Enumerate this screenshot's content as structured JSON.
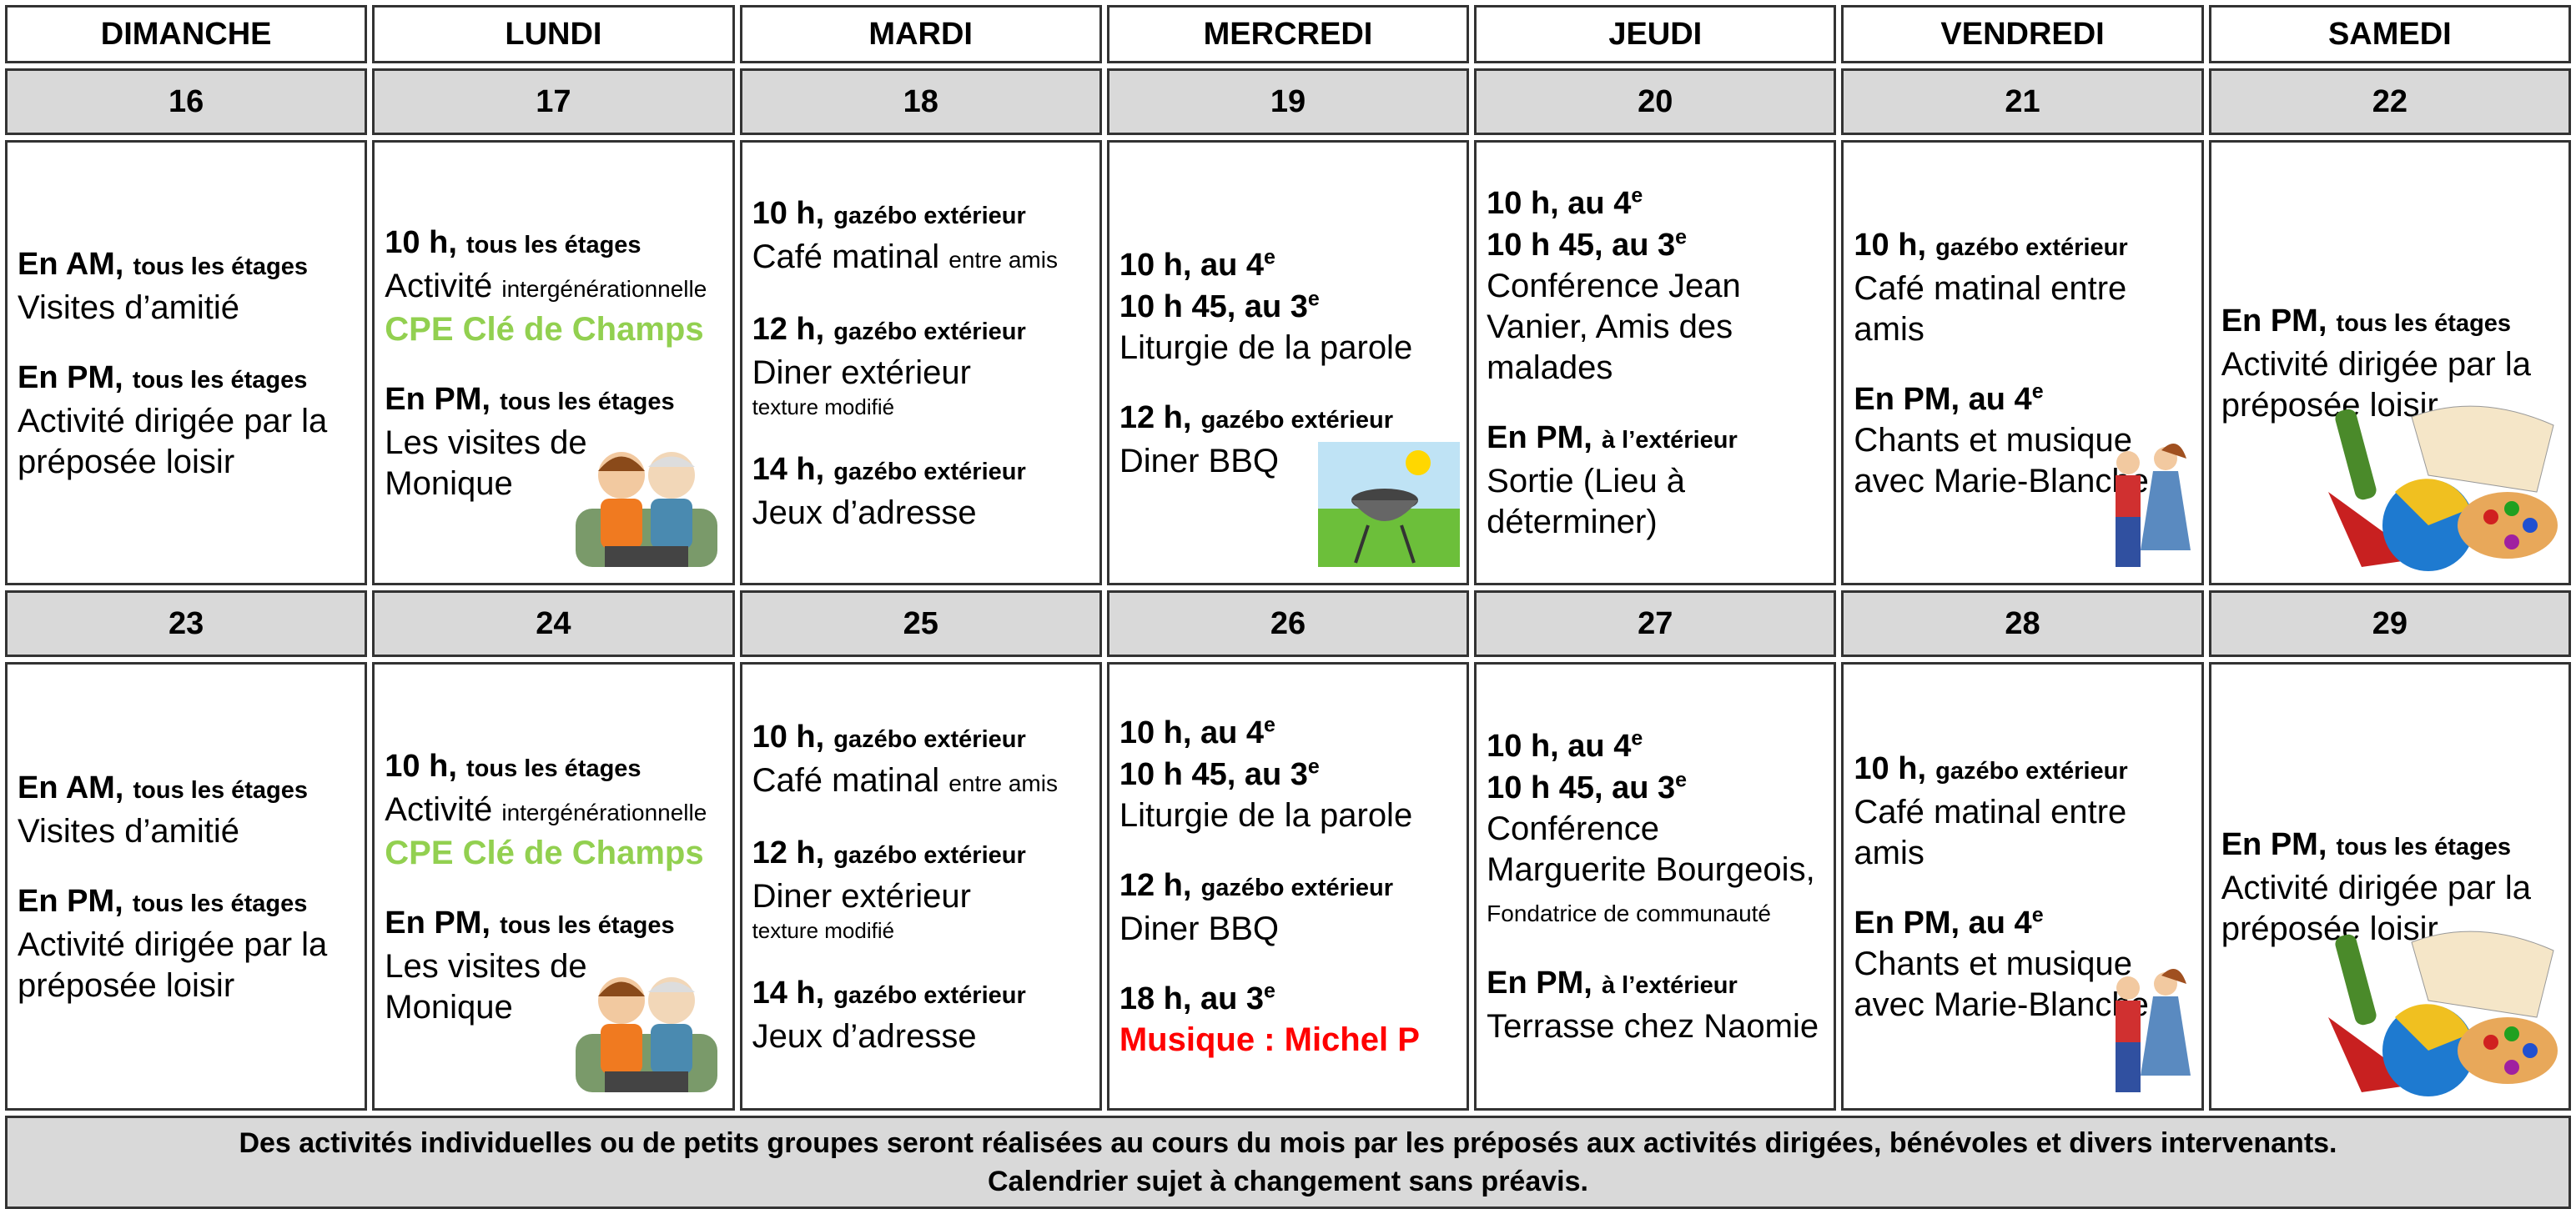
{
  "calendar": {
    "days": [
      "DIMANCHE",
      "LUNDI",
      "MARDI",
      "MERCREDI",
      "JEUDI",
      "VENDREDI",
      "SAMEDI"
    ],
    "weeks": [
      {
        "dates": [
          "16",
          "17",
          "18",
          "19",
          "20",
          "21",
          "22"
        ],
        "cells": [
          [
            {
              "times": [
                {
                  "text": "En AM,"
                }
              ],
              "place": "tous les étages",
              "activity": "Visites d’amitié"
            },
            {
              "times": [
                {
                  "text": "En PM,"
                }
              ],
              "place": "tous les étages",
              "activity": "Activité dirigée par la préposée loisir"
            }
          ],
          [
            {
              "times": [
                {
                  "text": "10 h,"
                }
              ],
              "place": "tous les étages",
              "activity": "Activité",
              "small": "intergénérationnelle",
              "highlight": {
                "text": "CPE Clé de Champs",
                "color": "#92d050"
              }
            },
            {
              "times": [
                {
                  "text": "En PM,"
                }
              ],
              "place": "tous les étages",
              "activity": "Les visites de Monique"
            }
          ],
          [
            {
              "times": [
                {
                  "text": "10 h,"
                }
              ],
              "place": "gazébo extérieur",
              "activity": "Café matinal",
              "small": "entre amis"
            },
            {
              "times": [
                {
                  "text": "12 h,"
                }
              ],
              "place": "gazébo extérieur",
              "activity": "Diner extérieur",
              "note": "texture modifié"
            },
            {
              "times": [
                {
                  "text": "14 h,"
                }
              ],
              "place": "gazébo extérieur",
              "activity": "Jeux d’adresse"
            }
          ],
          [
            {
              "times": [
                {
                  "text": "10 h, au 4",
                  "sup": "e"
                },
                {
                  "text": "10 h 45, au 3",
                  "sup": "e"
                }
              ],
              "activity": "Liturgie de la parole"
            },
            {
              "times": [
                {
                  "text": "12 h,"
                }
              ],
              "place": "gazébo extérieur",
              "activity": "Diner BBQ"
            }
          ],
          [
            {
              "times": [
                {
                  "text": "10 h, au 4",
                  "sup": "e"
                },
                {
                  "text": "10 h 45, au 3",
                  "sup": "e"
                }
              ],
              "activity": "Conférence Jean Vanier, Amis des malades"
            },
            {
              "times": [
                {
                  "text": "En PM,"
                }
              ],
              "place": "à l’extérieur",
              "activity": "Sortie (Lieu à déterminer)"
            }
          ],
          [
            {
              "times": [
                {
                  "text": "10 h,"
                }
              ],
              "place": "gazébo extérieur",
              "activity": "Café matinal entre amis"
            },
            {
              "times": [
                {
                  "text": "En PM, au 4",
                  "sup": "e"
                }
              ],
              "activity": "Chants et musique avec Marie-Blanche"
            }
          ],
          [
            {
              "times": [
                {
                  "text": "En PM,"
                }
              ],
              "place": "tous les étages",
              "activity": "Activité dirigée par la préposée loisir"
            }
          ]
        ]
      },
      {
        "dates": [
          "23",
          "24",
          "25",
          "26",
          "27",
          "28",
          "29"
        ],
        "cells": [
          [
            {
              "times": [
                {
                  "text": "En AM,"
                }
              ],
              "place": "tous les étages",
              "activity": "Visites d’amitié"
            },
            {
              "times": [
                {
                  "text": "En PM,"
                }
              ],
              "place": "tous les étages",
              "activity": "Activité dirigée par la préposée loisir"
            }
          ],
          [
            {
              "times": [
                {
                  "text": "10 h,"
                }
              ],
              "place": "tous les étages",
              "activity": "Activité",
              "small": "intergénérationnelle",
              "highlight": {
                "text": "CPE Clé de Champs",
                "color": "#92d050"
              }
            },
            {
              "times": [
                {
                  "text": "En PM,"
                }
              ],
              "place": "tous les étages",
              "activity": "Les visites de Monique"
            }
          ],
          [
            {
              "times": [
                {
                  "text": "10 h,"
                }
              ],
              "place": "gazébo extérieur",
              "activity": "Café matinal",
              "small": "entre amis"
            },
            {
              "times": [
                {
                  "text": "12 h,"
                }
              ],
              "place": "gazébo extérieur",
              "activity": "Diner extérieur",
              "note": "texture modifié"
            },
            {
              "times": [
                {
                  "text": "14 h,"
                }
              ],
              "place": "gazébo extérieur",
              "activity": "Jeux d’adresse"
            }
          ],
          [
            {
              "times": [
                {
                  "text": "10 h, au 4",
                  "sup": "e"
                },
                {
                  "text": "10 h 45, au 3",
                  "sup": "e"
                }
              ],
              "activity": "Liturgie de la parole"
            },
            {
              "times": [
                {
                  "text": "12 h,"
                }
              ],
              "place": "gazébo extérieur",
              "activity": "Diner BBQ"
            },
            {
              "times": [
                {
                  "text": "18 h, au 3",
                  "sup": "e"
                }
              ],
              "highlight": {
                "text": "Musique : Michel P",
                "color": "#ff0000"
              }
            }
          ],
          [
            {
              "times": [
                {
                  "text": "10 h, au 4",
                  "sup": "e"
                },
                {
                  "text": "10 h 45, au 3",
                  "sup": "e"
                }
              ],
              "activity": "Conférence Marguerite Bourgeois,",
              "small": "Fondatrice de communauté"
            },
            {
              "times": [
                {
                  "text": "En PM,"
                }
              ],
              "place": "à l’extérieur",
              "activity": "Terrasse chez Naomie"
            }
          ],
          [
            {
              "times": [
                {
                  "text": "10 h,"
                }
              ],
              "place": "gazébo extérieur",
              "activity": "Café matinal entre amis"
            },
            {
              "times": [
                {
                  "text": "En PM, au 4",
                  "sup": "e"
                }
              ],
              "activity": "Chants et musique avec Marie-Blanche"
            }
          ],
          [
            {
              "times": [
                {
                  "text": "En PM,"
                }
              ],
              "place": "tous les étages",
              "activity": "Activité dirigée par la préposée loisir"
            }
          ]
        ]
      }
    ],
    "footer": [
      "Des activités individuelles ou de petits groupes seront réalisées au cours du mois par les préposés aux activités dirigées, bénévoles et divers intervenants.",
      "Calendrier sujet à changement sans préavis."
    ]
  }
}
